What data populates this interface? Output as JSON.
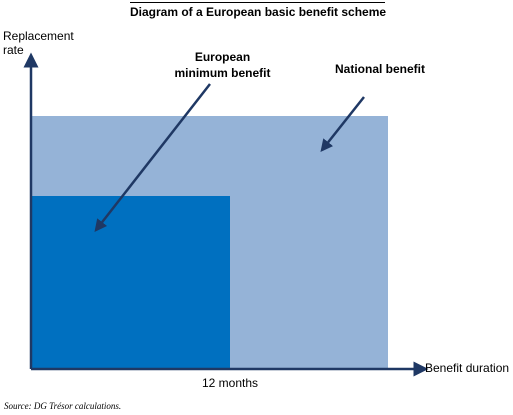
{
  "title": "Diagram of a European basic benefit scheme",
  "y_axis_label": [
    "Replacement",
    "rate"
  ],
  "x_axis_label": "Benefit duration",
  "x_tick": "12 months",
  "labels": {
    "european_min": [
      "European",
      "minimum benefit"
    ],
    "national": "National benefit"
  },
  "source": "Source: DG Trésor calculations.",
  "colors": {
    "national_benefit": "#95b3d7",
    "european_minimum_benefit": "#0070c0",
    "axis": "#1f3864"
  }
}
